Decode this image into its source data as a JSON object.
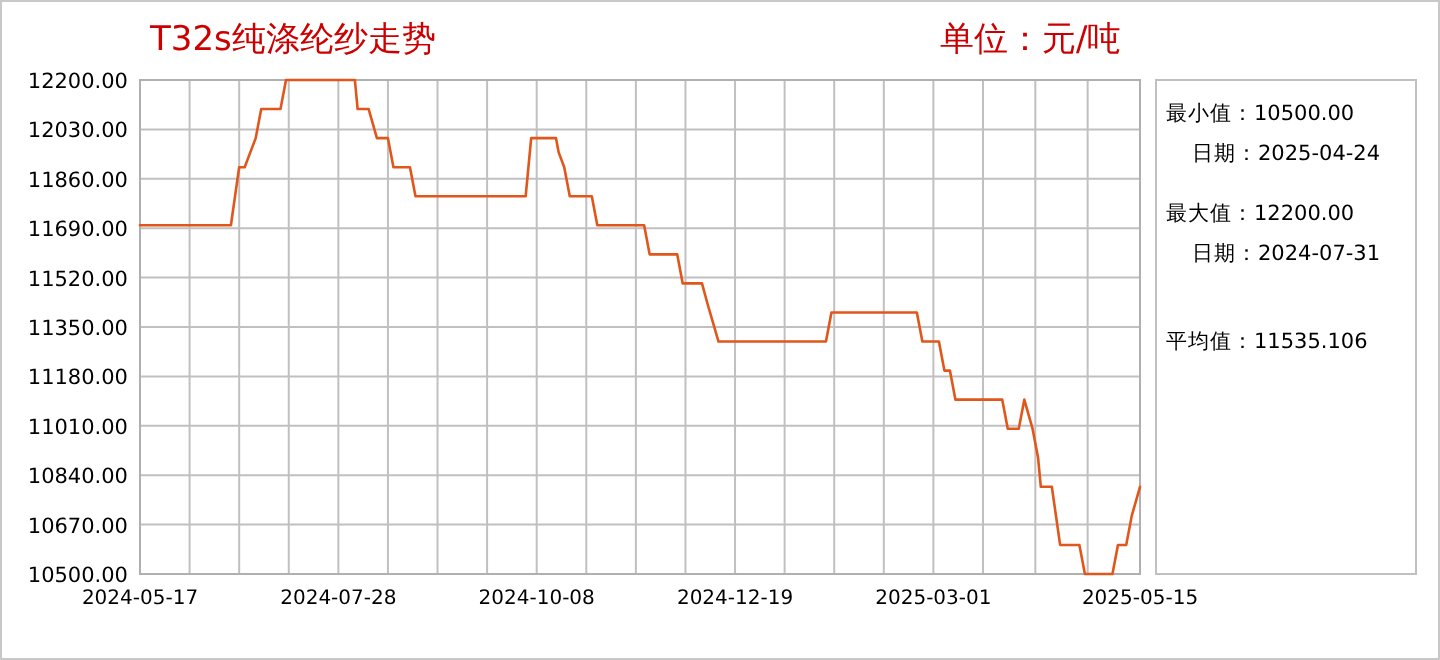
{
  "chart_data": {
    "type": "line",
    "title": "T32s纯涤纶纱走势",
    "subtitle": "单位：元/吨",
    "annotations": [
      "最小值：10500.00",
      "日期：2025-04-24",
      "最大值：12200.00",
      "日期：2024-07-31",
      "平均值：11535.106"
    ],
    "x": [
      "2024-05-17",
      "2024-06-19",
      "2024-06-22",
      "2024-06-24",
      "2024-06-26",
      "2024-06-28",
      "2024-06-30",
      "2024-07-07",
      "2024-07-09",
      "2024-08-03",
      "2024-08-04",
      "2024-08-08",
      "2024-08-11",
      "2024-08-15",
      "2024-08-17",
      "2024-08-23",
      "2024-08-25",
      "2024-10-04",
      "2024-10-06",
      "2024-10-15",
      "2024-10-16",
      "2024-10-18",
      "2024-10-20",
      "2024-10-28",
      "2024-10-30",
      "2024-11-16",
      "2024-11-18",
      "2024-11-28",
      "2024-11-30",
      "2024-12-07",
      "2024-12-09",
      "2024-12-13",
      "2025-01-21",
      "2025-01-23",
      "2025-02-23",
      "2025-02-25",
      "2025-03-03",
      "2025-03-05",
      "2025-03-07",
      "2025-03-09",
      "2025-03-26",
      "2025-03-28",
      "2025-04-01",
      "2025-04-03",
      "2025-04-06",
      "2025-04-08",
      "2025-04-09",
      "2025-04-13",
      "2025-04-16",
      "2025-04-23",
      "2025-04-25",
      "2025-05-05",
      "2025-05-07",
      "2025-05-10",
      "2025-05-12",
      "2025-05-15"
    ],
    "series": [
      {
        "color": "#e0561b",
        "values": [
          11700,
          11700,
          11900,
          11900,
          11950,
          12000,
          12100,
          12100,
          12200,
          12200,
          12100,
          12100,
          12000,
          12000,
          11900,
          11900,
          11800,
          11800,
          12000,
          12000,
          11950,
          11900,
          11800,
          11800,
          11700,
          11700,
          11600,
          11600,
          11500,
          11500,
          11430,
          11300,
          11300,
          11400,
          11400,
          11300,
          11300,
          11200,
          11200,
          11100,
          11100,
          11000,
          11000,
          11100,
          11000,
          10900,
          10800,
          10800,
          10600,
          10600,
          10500,
          10500,
          10600,
          10600,
          10700,
          10800
        ]
      }
    ],
    "xlim": [
      "2024-05-17",
      "2025-05-15"
    ],
    "xticks": [
      "2024-05-17",
      {
        "value": "2024-06-04",
        "label": null
      },
      {
        "value": "2024-06-22",
        "label": null
      },
      {
        "value": "2024-07-10",
        "label": null
      },
      "2024-07-28",
      {
        "value": "2024-08-15",
        "label": null
      },
      {
        "value": "2024-09-02",
        "label": null
      },
      {
        "value": "2024-09-20",
        "label": null
      },
      "2024-10-08",
      {
        "value": "2024-10-26",
        "label": null
      },
      {
        "value": "2024-11-13",
        "label": null
      },
      {
        "value": "2024-12-01",
        "label": null
      },
      "2024-12-19",
      {
        "value": "2025-01-06",
        "label": null
      },
      {
        "value": "2025-01-24",
        "label": null
      },
      {
        "value": "2025-02-11",
        "label": null
      },
      "2025-03-01",
      {
        "value": "2025-03-19",
        "label": null
      },
      {
        "value": "2025-04-07",
        "label": null
      },
      {
        "value": "2025-04-26",
        "label": null
      },
      "2025-05-15"
    ],
    "ylim": [
      10500,
      12200
    ],
    "yticks": [
      {
        "value": 10500,
        "label": "10500.00"
      },
      {
        "value": 10670,
        "label": "10670.00"
      },
      {
        "value": 10840,
        "label": "10840.00"
      },
      {
        "value": 11010,
        "label": "11010.00"
      },
      {
        "value": 11180,
        "label": "11180.00"
      },
      {
        "value": 11350,
        "label": "11350.00"
      },
      {
        "value": 11520,
        "label": "11520.00"
      },
      {
        "value": 11690,
        "label": "11690.00"
      },
      {
        "value": 11860,
        "label": "11860.00"
      },
      {
        "value": 12030,
        "label": "12030.00"
      },
      {
        "value": 12200,
        "label": "12200.00"
      }
    ],
    "grid": true
  }
}
